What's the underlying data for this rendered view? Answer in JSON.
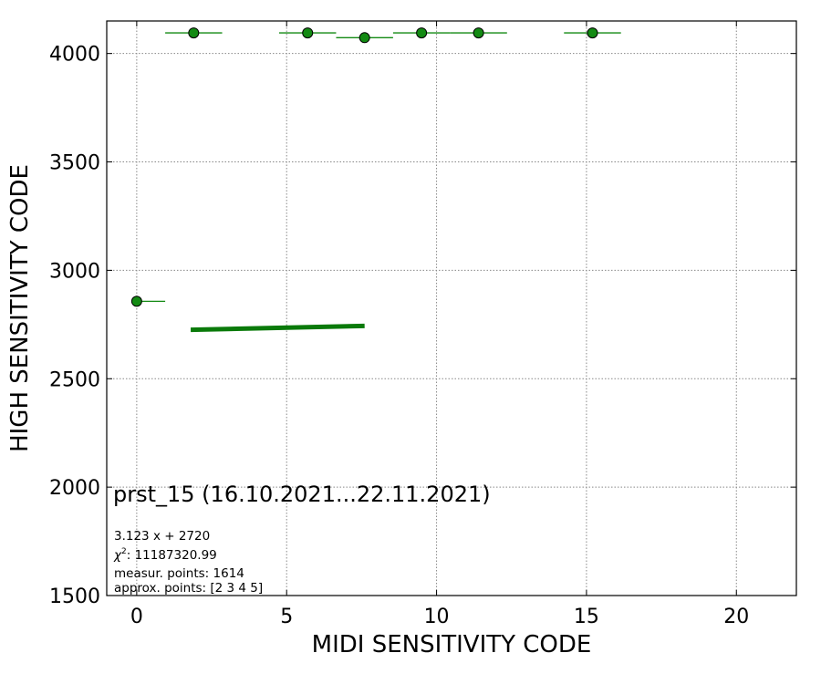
{
  "chart_data": {
    "type": "scatter",
    "xlabel": "MIDI SENSITIVITY CODE",
    "ylabel": "HIGH SENSITIVITY CODE",
    "xlim": [
      -1,
      22
    ],
    "ylim": [
      1500,
      4150
    ],
    "x_ticks": [
      0,
      5,
      10,
      15,
      20
    ],
    "y_ticks": [
      1500,
      2000,
      2500,
      3000,
      3500,
      4000
    ],
    "grid": true,
    "points": [
      {
        "x": 0.0,
        "y": 2857,
        "xerr": [
          0.0,
          0.95
        ]
      },
      {
        "x": 1.9,
        "y": 4095,
        "xerr": [
          0.95,
          0.95
        ]
      },
      {
        "x": 5.7,
        "y": 4095,
        "xerr": [
          0.95,
          0.95
        ]
      },
      {
        "x": 7.6,
        "y": 4073,
        "xerr": [
          0.95,
          0.95
        ]
      },
      {
        "x": 9.5,
        "y": 4095,
        "xerr": [
          0.95,
          0.95
        ]
      },
      {
        "x": 11.4,
        "y": 4095,
        "xerr": [
          0.95,
          0.95
        ]
      },
      {
        "x": 15.2,
        "y": 4095,
        "xerr": [
          0.95,
          0.95
        ]
      }
    ],
    "fit_line": {
      "slope": 3.123,
      "intercept": 2720,
      "x_range": [
        1.8,
        7.6
      ]
    },
    "colors": {
      "marker": "#138a13",
      "fit": "#0a7a0a",
      "grid": "#888888"
    }
  },
  "annotation": {
    "title": "prst_15 (16.10.2021...22.11.2021)",
    "fit_text": "3.123 x + 2720",
    "chi2_symbol": "χ",
    "chi2_sup": "2",
    "chi2_value": ": 11187320.99",
    "measur_points": "measur. points: 1614",
    "approx_points": "approx. points: [2 3 4 5]"
  }
}
